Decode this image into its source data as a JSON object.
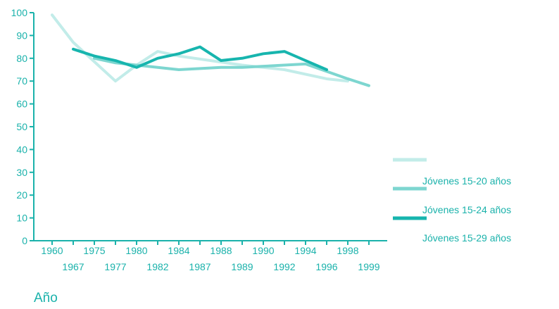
{
  "chart_data": {
    "type": "line",
    "title": "",
    "xlabel": "Año",
    "ylabel": "",
    "ylim": [
      0,
      100
    ],
    "yticks": [
      0,
      10,
      20,
      30,
      40,
      50,
      60,
      70,
      80,
      90,
      100
    ],
    "categories": [
      "1960",
      "1967",
      "1975",
      "1977",
      "1980",
      "1982",
      "1984",
      "1987",
      "1988",
      "1989",
      "1990",
      "1992",
      "1994",
      "1996",
      "1998",
      "1999"
    ],
    "grid": false,
    "legend_position": "right",
    "series": [
      {
        "name": "Jóvenes 15-20 años",
        "color": "#c2ece9",
        "values": [
          99,
          87,
          null,
          70,
          77,
          83,
          81,
          null,
          null,
          77,
          null,
          75,
          null,
          71,
          70,
          null
        ]
      },
      {
        "name": "Jóvenes 15-24 años",
        "color": "#7dd6d0",
        "values": [
          null,
          null,
          80,
          78,
          77,
          76,
          75,
          75.5,
          76,
          76,
          76.5,
          77,
          77.5,
          null,
          71,
          68
        ]
      },
      {
        "name": "Jóvenes 15-29 años",
        "color": "#17b5ae",
        "values": [
          null,
          84,
          81,
          79,
          76,
          80,
          82,
          85,
          79,
          80,
          82,
          83,
          79,
          75,
          null,
          null
        ]
      }
    ]
  }
}
